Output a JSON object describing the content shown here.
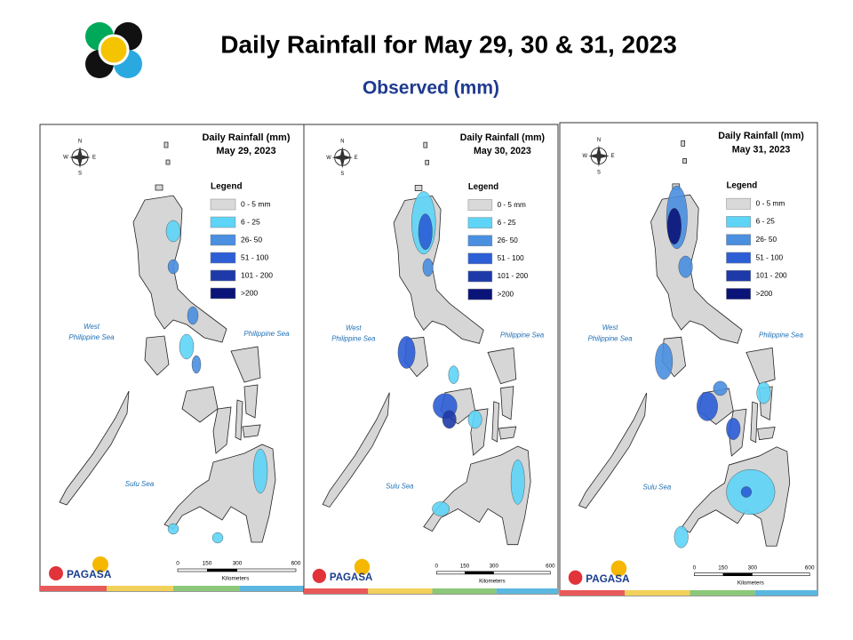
{
  "header": {
    "title": "Daily Rainfall for May 29, 30 & 31, 2023",
    "subtitle": "Observed (mm)"
  },
  "panels": [
    {
      "title": "Daily Rainfall (mm)",
      "date": "May 29, 2023"
    },
    {
      "title": "Daily Rainfall (mm)",
      "date": "May 30, 2023"
    },
    {
      "title": "Daily Rainfall (mm)",
      "date": "May 31, 2023"
    }
  ],
  "legend": {
    "title": "Legend",
    "items": [
      {
        "label": "0 - 5 mm",
        "color": "#d9d9d9"
      },
      {
        "label": "6 - 25",
        "color": "#5ed4f7"
      },
      {
        "label": "26- 50",
        "color": "#4a8fe0"
      },
      {
        "label": "51 - 100",
        "color": "#2c5ed6"
      },
      {
        "label": "101 - 200",
        "color": "#1e3aa8"
      },
      {
        "label": ">200",
        "color": "#0a1478"
      }
    ]
  },
  "seas": {
    "west_line1": "West",
    "west_line2": "Philippine Sea",
    "east": "Philippine Sea",
    "south": "Sulu Sea"
  },
  "compass": {
    "n": "N",
    "e": "E",
    "s": "S",
    "w": "W"
  },
  "scale": {
    "ticks": [
      "0",
      "150",
      "300",
      "600"
    ],
    "unit": "Kilometers"
  },
  "logo": {
    "name": "PAGASA"
  }
}
